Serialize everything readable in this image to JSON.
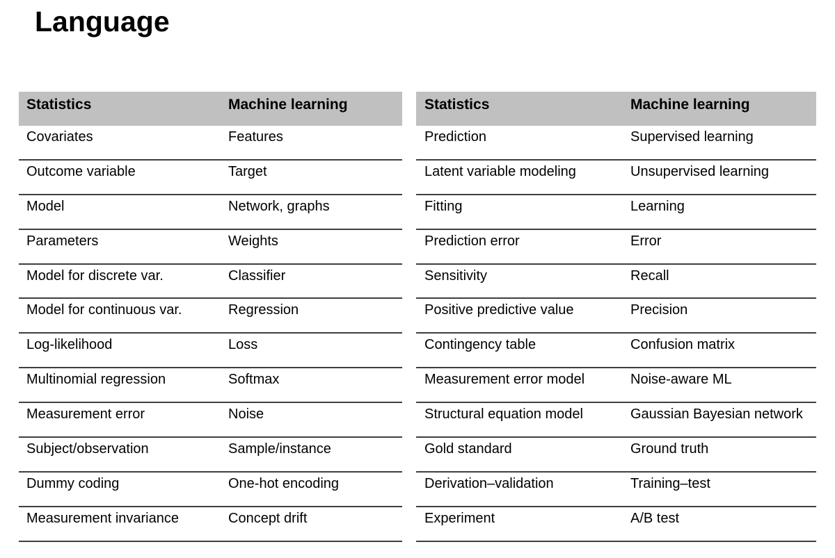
{
  "title": "Language",
  "colors": {
    "header_bg": "#c0c0c0",
    "row_line": "#3e3e3e",
    "text": "#000000"
  },
  "tables": [
    {
      "id": "left",
      "headers": [
        "Statistics",
        "Machine learning"
      ],
      "rows": [
        [
          "Covariates",
          "Features"
        ],
        [
          "Outcome variable",
          "Target"
        ],
        [
          "Model",
          "Network, graphs"
        ],
        [
          "Parameters",
          "Weights"
        ],
        [
          "Model for discrete var.",
          "Classifier"
        ],
        [
          "Model for continuous var.",
          "Regression"
        ],
        [
          "Log-likelihood",
          "Loss"
        ],
        [
          "Multinomial regression",
          "Softmax"
        ],
        [
          "Measurement error",
          "Noise"
        ],
        [
          "Subject/observation",
          "Sample/instance"
        ],
        [
          "Dummy coding",
          "One-hot encoding"
        ],
        [
          "Measurement invariance",
          "Concept drift"
        ]
      ]
    },
    {
      "id": "right",
      "headers": [
        "Statistics",
        "Machine learning"
      ],
      "rows": [
        [
          "Prediction",
          "Supervised learning"
        ],
        [
          "Latent variable modeling",
          "Unsupervised learning"
        ],
        [
          "Fitting",
          "Learning"
        ],
        [
          "Prediction error",
          "Error"
        ],
        [
          "Sensitivity",
          "Recall"
        ],
        [
          "Positive predictive value",
          "Precision"
        ],
        [
          "Contingency table",
          "Confusion matrix"
        ],
        [
          "Measurement error model",
          "Noise-aware ML"
        ],
        [
          "Structural equation model",
          "Gaussian Bayesian network"
        ],
        [
          "Gold standard",
          "Ground truth"
        ],
        [
          "Derivation–validation",
          "Training–test"
        ],
        [
          "Experiment",
          "A/B test"
        ]
      ]
    }
  ]
}
